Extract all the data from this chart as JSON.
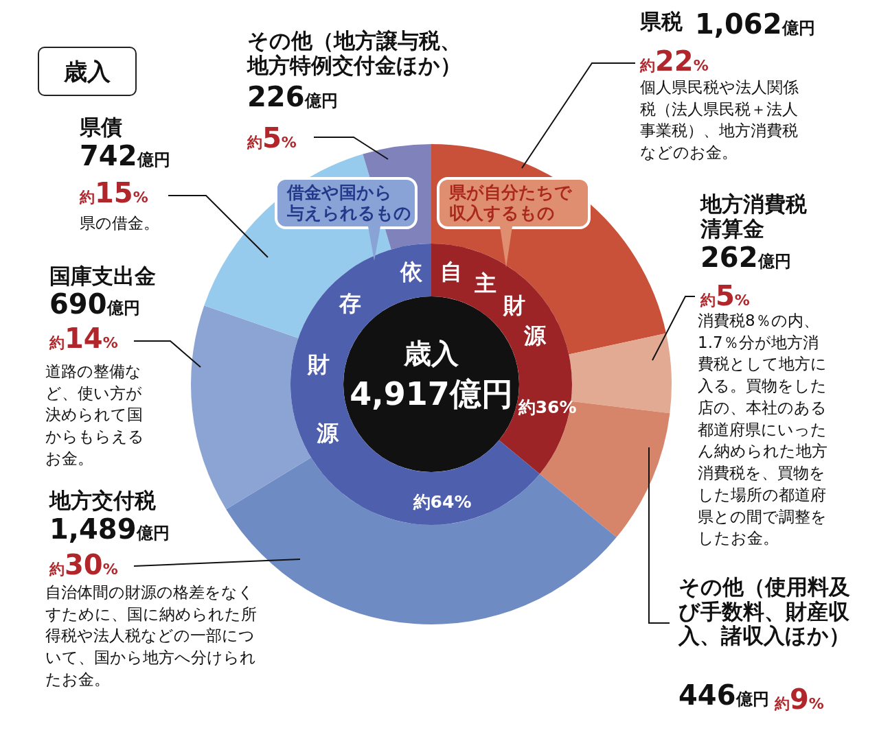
{
  "chart_data": [
    {
      "type": "donut",
      "title": "歳入",
      "categories": [
        "県税",
        "地方消費税清算金",
        "その他（使用料及び手数料、財産収入、諸収入ほか）",
        "地方交付税",
        "国庫支出金",
        "県債",
        "その他（地方譲与税、地方特例交付金ほか）"
      ],
      "values": [
        1062,
        262,
        446,
        1489,
        690,
        742,
        226
      ],
      "colors": [
        "#c9513a",
        "#e2aa93",
        "#d6846a",
        "#6f8bc4",
        "#8ba4d4",
        "#96cbee",
        "#8082bc"
      ],
      "value_labels": [
        "1,062億円",
        "262億円",
        "446億円",
        "1,489億円",
        "690億円",
        "742億円",
        "226億円"
      ],
      "annotations": [
        "約22%",
        "約5%",
        "約9%",
        "約30%",
        "約14%",
        "約15%",
        "約5%",
        "個人県民税や法人関係税（法人県民税＋法人事業税）、地方消費税などのお金。",
        "消費税8％の内、1.7％分が地方消費税として地方に入る。買物をした店の、本社のある都道府県にいったん納められた地方消費税を、買物をした場所の都道府県との間で調整をしたお金。",
        "自治体間の財源の格差をなくすために、国に納められた所得税や法人税などの一部について、国から地方へ分けられたお金。",
        "道路の整備など、使い方が決められて国からもらえるお金。",
        "県の借金。"
      ]
    },
    {
      "type": "donut",
      "title": "歳入",
      "categories": [
        "自主財源",
        "依存財源"
      ],
      "values": [
        36,
        64
      ],
      "colors": [
        "#9c2426",
        "#4e5fae"
      ],
      "value_labels": [
        "約36%",
        "約64%"
      ],
      "annotations": [
        "4,917億円",
        "借金や国から与えられるもの",
        "県が自分たちで収入するもの"
      ]
    }
  ]
}
